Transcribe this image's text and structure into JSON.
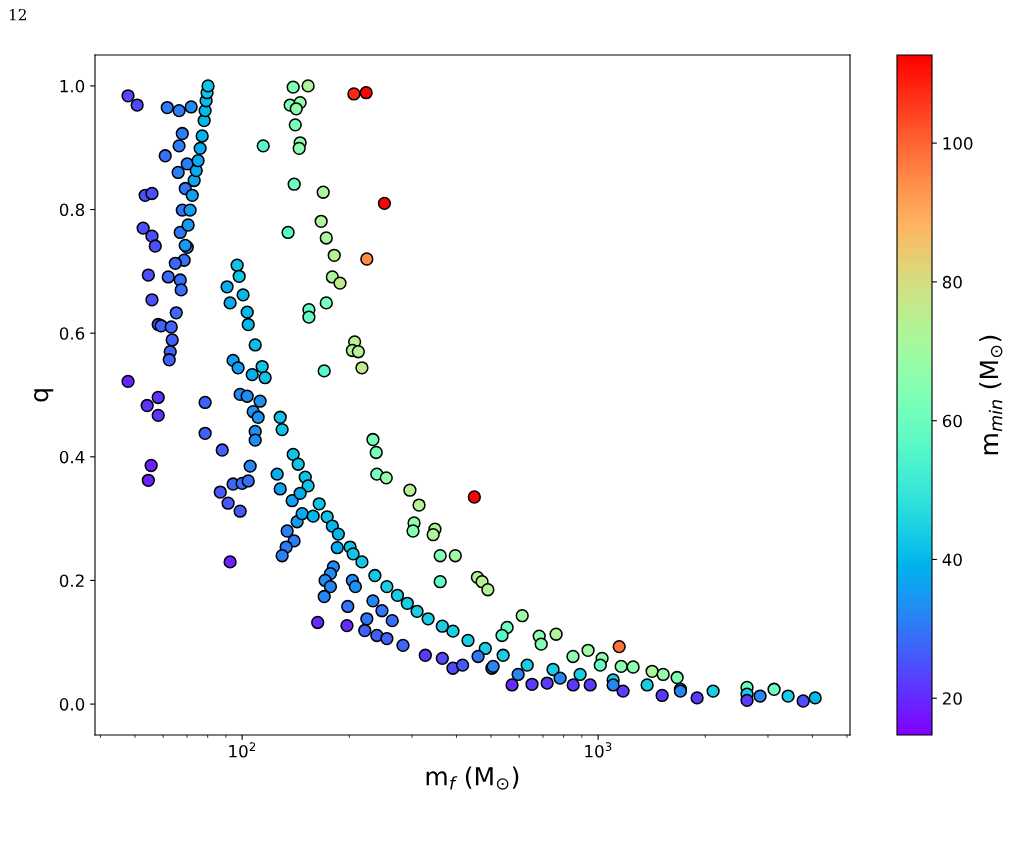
{
  "chart_data": {
    "type": "scatter",
    "xlabel": "m$_{f}$ (M$_{⊙}$)",
    "ylabel": "q",
    "clabel": "m$_{min}$ (M$_{⊙}$)",
    "annotations": [
      "12"
    ],
    "log": "x",
    "grid": false,
    "marker": "circle",
    "xlim": [
      38.6,
      5100
    ],
    "xticks": [
      {
        "value": 100,
        "label": "10$^{2}$"
      },
      {
        "value": 1000,
        "label": "10$^{3}$"
      }
    ],
    "ylim": [
      -0.05,
      1.05
    ],
    "yticks": [
      {
        "value": 0,
        "label": "0.0"
      },
      {
        "value": 0.2,
        "label": "0.2"
      },
      {
        "value": 0.4,
        "label": "0.4"
      },
      {
        "value": 0.6,
        "label": "0.6"
      },
      {
        "value": 0.8,
        "label": "0.8"
      },
      {
        "value": 1.0,
        "label": "1.0"
      }
    ],
    "clim": [
      14.7,
      112.7
    ],
    "cticks": [
      20,
      40,
      60,
      80,
      100
    ],
    "series": [
      {
        "x": [
          47.8,
          50.7,
          53.4,
          55.8,
          52.7,
          55.8,
          57.0,
          54.5,
          55.8,
          58.1,
          47.8,
          54.1,
          58.1,
          58.1,
          55.5,
          54.5,
          78.7,
          78.7,
          61.6,
          66.5,
          71.9,
          67.9,
          66.5,
          60.8,
          66.1,
          70.1,
          69.2,
          67.9,
          67.0,
          70.1,
          68.7,
          64.9,
          62.0,
          67.0,
          67.4,
          65.3,
          59.2,
          63.2,
          63.6,
          62.8,
          62.4,
          69.2,
          70.5,
          71.4,
          72.4,
          73.3,
          74.3,
          75.2,
          76.2,
          77.2,
          78.2,
          78.7,
          79.2,
          79.7,
          80.2,
          96.8,
          98.1,
          90.7,
          92.5,
          100.6,
          103.3,
          104.0,
          108.8,
          113.8,
          116.0,
          106.7,
          94.3,
          97.4,
          98.7,
          103.3,
          112.3,
          107.4,
          110.9,
          108.8,
          127.9,
          129.5,
          87.9,
          105.3,
          108.8,
          94.3,
          100.0,
          104.0,
          86.8,
          91.3,
          98.7,
          92.5,
          125.4,
          139.1,
          143.7,
          150.4,
          153.2,
          127.9,
          138.2,
          145.5,
          142.7,
          147.4,
          133.8,
          139.9,
          132.9,
          129.5,
          164.6,
          158.3,
          173.3,
          179.2,
          186.3,
          185.0,
          201,
          205,
          217,
          236,
          255,
          273,
          291,
          310,
          333,
          365,
          391,
          431,
          482,
          180.4,
          177,
          171,
          177,
          170,
          204,
          208,
          233,
          247,
          224,
          264,
          198,
          197,
          163,
          221,
          239,
          255,
          283,
          327,
          365,
          391,
          416,
          460,
          503,
          233,
          238,
          239,
          254,
          296,
          314,
          304,
          302,
          348,
          344,
          360,
          397,
          360,
          458,
          472,
          490,
          449,
          139.1,
          153.2,
          136.4,
          145.5,
          141.9,
          141.0,
          145.5,
          144.6,
          140.0,
          168.9,
          166.7,
          172.3,
          134.6,
          181.4,
          179.2,
          188.3,
          172.3,
          154.0,
          154.0,
          207,
          204,
          212,
          217,
          170,
          206,
          223,
          251,
          224,
          114.6,
          612,
          555,
          537,
          683,
          692,
          762,
          1146,
          850,
          937,
          1026,
          1014,
          1161,
          1254,
          1418,
          1523,
          1667,
          2620,
          3121,
          541,
          632,
          747,
          890,
          1102,
          1373,
          1703,
          2104,
          2620,
          3417,
          4071,
          573,
          652,
          719,
          851,
          950,
          1175,
          1513,
          1897,
          2620,
          3767,
          507,
          596,
          782,
          1102,
          1703,
          2851
        ],
        "values": [
          0.984,
          0.969,
          0.823,
          0.826,
          0.77,
          0.757,
          0.741,
          0.694,
          0.654,
          0.614,
          0.522,
          0.483,
          0.496,
          0.467,
          0.386,
          0.362,
          0.488,
          0.438,
          0.965,
          0.96,
          0.966,
          0.923,
          0.903,
          0.887,
          0.86,
          0.874,
          0.834,
          0.799,
          0.763,
          0.739,
          0.718,
          0.713,
          0.691,
          0.686,
          0.67,
          0.633,
          0.612,
          0.61,
          0.589,
          0.57,
          0.557,
          0.742,
          0.775,
          0.799,
          0.823,
          0.847,
          0.863,
          0.879,
          0.899,
          0.919,
          0.944,
          0.96,
          0.976,
          0.989,
          1.0,
          0.71,
          0.692,
          0.675,
          0.649,
          0.662,
          0.634,
          0.614,
          0.581,
          0.546,
          0.528,
          0.533,
          0.556,
          0.544,
          0.501,
          0.498,
          0.49,
          0.473,
          0.464,
          0.441,
          0.464,
          0.444,
          0.411,
          0.385,
          0.427,
          0.356,
          0.357,
          0.361,
          0.343,
          0.325,
          0.312,
          0.23,
          0.372,
          0.404,
          0.388,
          0.367,
          0.353,
          0.348,
          0.329,
          0.341,
          0.295,
          0.308,
          0.28,
          0.264,
          0.254,
          0.24,
          0.324,
          0.304,
          0.303,
          0.288,
          0.275,
          0.253,
          0.254,
          0.243,
          0.23,
          0.208,
          0.19,
          0.176,
          0.163,
          0.15,
          0.138,
          0.126,
          0.118,
          0.103,
          0.09,
          0.222,
          0.211,
          0.2,
          0.19,
          0.174,
          0.2,
          0.19,
          0.167,
          0.151,
          0.138,
          0.135,
          0.158,
          0.127,
          0.132,
          0.119,
          0.111,
          0.106,
          0.095,
          0.079,
          0.074,
          0.058,
          0.063,
          0.077,
          0.058,
          0.428,
          0.407,
          0.372,
          0.366,
          0.346,
          0.322,
          0.293,
          0.28,
          0.283,
          0.274,
          0.24,
          0.24,
          0.198,
          0.205,
          0.198,
          0.185,
          0.335,
          0.998,
          1.0,
          0.969,
          0.973,
          0.963,
          0.937,
          0.908,
          0.899,
          0.841,
          0.828,
          0.781,
          0.754,
          0.763,
          0.726,
          0.691,
          0.681,
          0.649,
          0.638,
          0.626,
          0.586,
          0.572,
          0.57,
          0.544,
          0.539,
          0.987,
          0.989,
          0.81,
          0.72,
          0.903,
          0.143,
          0.124,
          0.111,
          0.11,
          0.097,
          0.113,
          0.093,
          0.077,
          0.087,
          0.074,
          0.063,
          0.061,
          0.06,
          0.053,
          0.048,
          0.043,
          0.027,
          0.024,
          0.079,
          0.063,
          0.056,
          0.048,
          0.039,
          0.031,
          0.024,
          0.021,
          0.016,
          0.013,
          0.01,
          0.031,
          0.032,
          0.034,
          0.031,
          0.031,
          0.021,
          0.014,
          0.01,
          0.006,
          0.005,
          0.061,
          0.048,
          0.042,
          0.031,
          0.021,
          0.013
        ],
        "cvalues": [
          24,
          24,
          25,
          25,
          25,
          25,
          25,
          25,
          25,
          26,
          19,
          21,
          21,
          21,
          19,
          19,
          27,
          27,
          31,
          31,
          33,
          31,
          31,
          29,
          31,
          31,
          30,
          30,
          30,
          30,
          29,
          28,
          28,
          29,
          29,
          28,
          27,
          27,
          27,
          27,
          27,
          35,
          35,
          36,
          36,
          37,
          37,
          38,
          38,
          39,
          40,
          40,
          41,
          42,
          42,
          42,
          42,
          38,
          38,
          40,
          40,
          40,
          41,
          42,
          42,
          38,
          36,
          36,
          33,
          33,
          34,
          34,
          34,
          33,
          42,
          42,
          27,
          32,
          33,
          28,
          29,
          29,
          26,
          26,
          26,
          19,
          38,
          42,
          42,
          42,
          42,
          36,
          36,
          38,
          35,
          38,
          31,
          31,
          31,
          31,
          42,
          40,
          42,
          40,
          40,
          38,
          42,
          42,
          43,
          43,
          44,
          44,
          44,
          44,
          44,
          44,
          44,
          44,
          44,
          33,
          33,
          33,
          32,
          32,
          33,
          34,
          32,
          30,
          30,
          29,
          30,
          20,
          20,
          27,
          27,
          27,
          28,
          22,
          24,
          24,
          26,
          30,
          28,
          62,
          62,
          62,
          68,
          74,
          74,
          66,
          64,
          72,
          72,
          64,
          70,
          58,
          74,
          74,
          74,
          112,
          64,
          72,
          64,
          68,
          66,
          62,
          66,
          66,
          60,
          72,
          72,
          72,
          56,
          74,
          72,
          76,
          62,
          58,
          58,
          74,
          74,
          74,
          76,
          56,
          108,
          112,
          112,
          95,
          56,
          70,
          60,
          56,
          66,
          64,
          72,
          98,
          66,
          70,
          66,
          58,
          66,
          66,
          72,
          68,
          64,
          60,
          60,
          44,
          44,
          44,
          44,
          44,
          44,
          44,
          44,
          44,
          44,
          40,
          20,
          22,
          22,
          22,
          22,
          22,
          22,
          22,
          22,
          25,
          32,
          32,
          32,
          32,
          32,
          32
        ]
      }
    ]
  }
}
